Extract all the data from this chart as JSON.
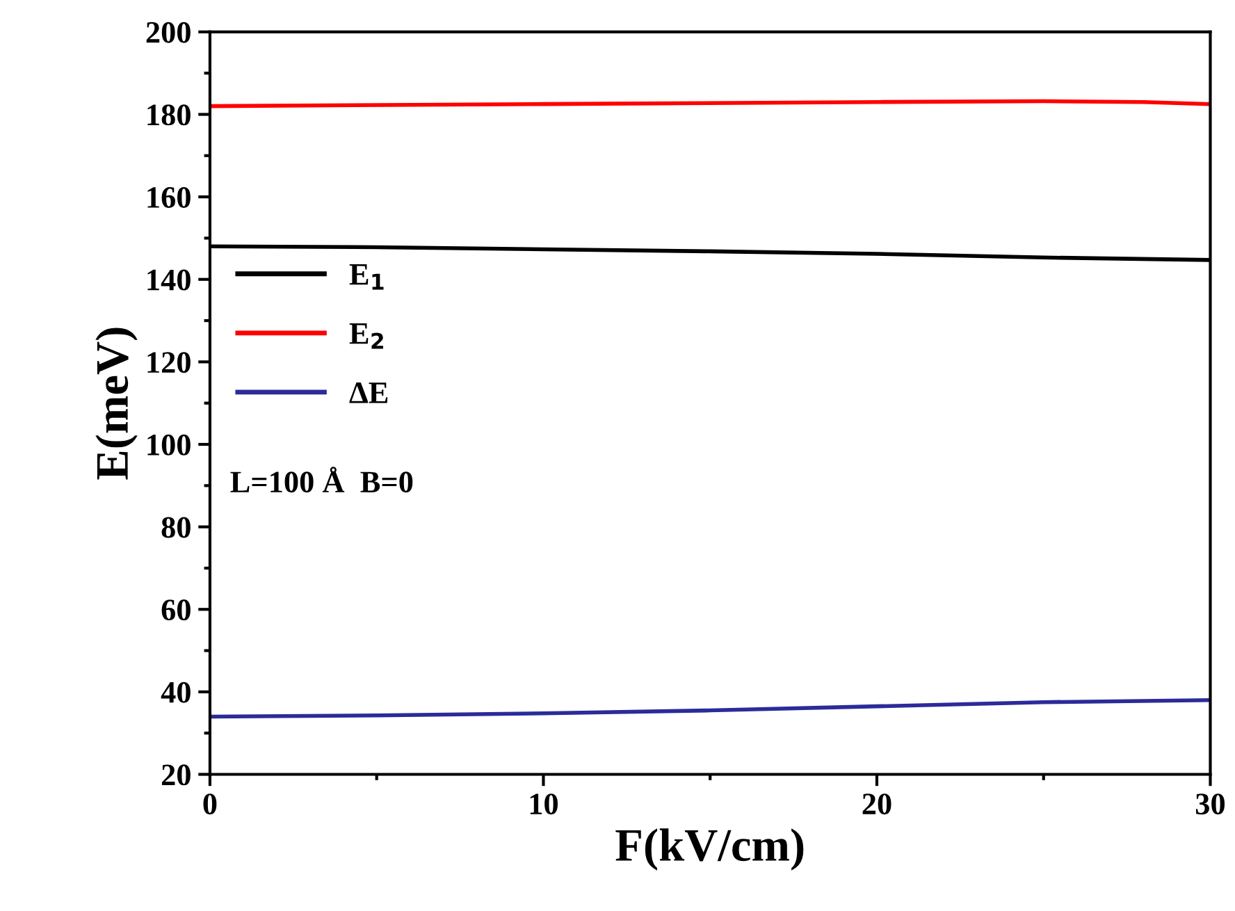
{
  "chart_data": {
    "type": "line",
    "xlabel": "F(kV/cm)",
    "ylabel": "E(meV)",
    "xlim": [
      0,
      30
    ],
    "xticks": [
      0,
      10,
      20,
      30
    ],
    "ylim": [
      20,
      200
    ],
    "yticks": [
      20,
      40,
      60,
      80,
      100,
      120,
      140,
      160,
      180,
      200
    ],
    "grid": false,
    "legend": "left",
    "line_style": "solid",
    "marker": "none",
    "annotations": [
      "L=100 Å  B=0"
    ],
    "series": [
      {
        "name": "E$_{1}$",
        "color": "#000000",
        "x": [
          0,
          5,
          10,
          15,
          20,
          25,
          30
        ],
        "values": [
          148,
          147.8,
          147.3,
          146.8,
          146.2,
          145.3,
          144.7
        ]
      },
      {
        "name": "E$_{2}$",
        "color": "#ff0000",
        "x": [
          0,
          10,
          20,
          25,
          28,
          30
        ],
        "values": [
          182,
          182.5,
          183,
          183.2,
          183,
          182.5
        ]
      },
      {
        "name": "ΔE",
        "color": "#2b2b9a",
        "x": [
          0,
          5,
          10,
          15,
          20,
          25,
          30
        ],
        "values": [
          34,
          34.3,
          34.8,
          35.5,
          36.5,
          37.5,
          38
        ]
      }
    ]
  }
}
